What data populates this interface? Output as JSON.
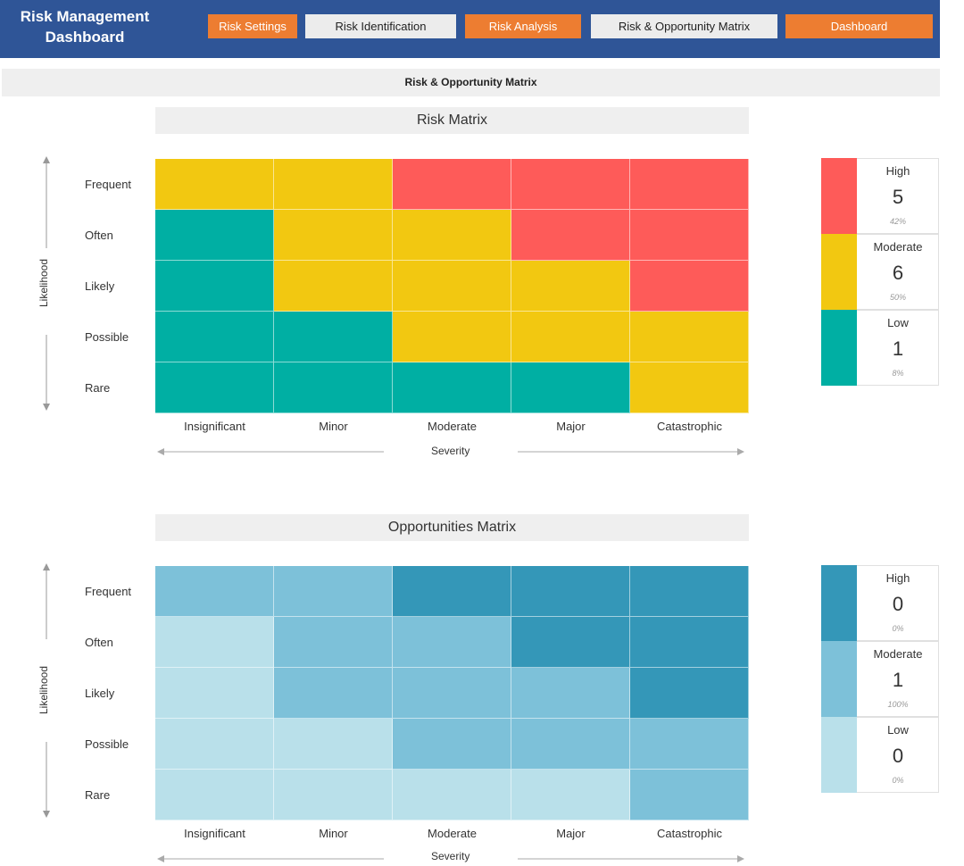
{
  "header": {
    "title_line1": "Risk Management",
    "title_line2": "Dashboard",
    "nav": [
      {
        "label": "Risk Settings",
        "style": "orange"
      },
      {
        "label": "Risk Identification",
        "style": "light"
      },
      {
        "label": "Risk Analysis",
        "style": "orange"
      },
      {
        "label": "Risk & Opportunity  Matrix",
        "style": "light"
      },
      {
        "label": "Dashboard",
        "style": "orange"
      }
    ]
  },
  "section_title": "Risk & Opportunity Matrix",
  "colors": {
    "risk": {
      "high": "#fe5b59",
      "moderate": "#f2c811",
      "low": "#00afa3"
    },
    "opp": {
      "high": "#3497b8",
      "moderate": "#7dc1d9",
      "low": "#b9e0ea"
    }
  },
  "chart_data": [
    {
      "type": "heatmap",
      "title": "Risk Matrix",
      "ylabel": "Likelihood",
      "xlabel": "Severity",
      "rows": [
        "Frequent",
        "Often",
        "Likely",
        "Possible",
        "Rare"
      ],
      "columns": [
        "Insignificant",
        "Minor",
        "Moderate",
        "Major",
        "Catastrophic"
      ],
      "cells": [
        [
          "moderate",
          "moderate",
          "high",
          "high",
          "high"
        ],
        [
          "low",
          "moderate",
          "moderate",
          "high",
          "high"
        ],
        [
          "low",
          "moderate",
          "moderate",
          "moderate",
          "high"
        ],
        [
          "low",
          "low",
          "moderate",
          "moderate",
          "moderate"
        ],
        [
          "low",
          "low",
          "low",
          "low",
          "moderate"
        ]
      ],
      "legend": [
        {
          "level": "high",
          "label": "High",
          "count": 5,
          "percent": "42%"
        },
        {
          "level": "moderate",
          "label": "Moderate",
          "count": 6,
          "percent": "50%"
        },
        {
          "level": "low",
          "label": "Low",
          "count": 1,
          "percent": "8%"
        }
      ]
    },
    {
      "type": "heatmap",
      "title": "Opportunities Matrix",
      "ylabel": "Likelihood",
      "xlabel": "Severity",
      "rows": [
        "Frequent",
        "Often",
        "Likely",
        "Possible",
        "Rare"
      ],
      "columns": [
        "Insignificant",
        "Minor",
        "Moderate",
        "Major",
        "Catastrophic"
      ],
      "cells": [
        [
          "moderate",
          "moderate",
          "high",
          "high",
          "high"
        ],
        [
          "low",
          "moderate",
          "moderate",
          "high",
          "high"
        ],
        [
          "low",
          "moderate",
          "moderate",
          "moderate",
          "high"
        ],
        [
          "low",
          "low",
          "moderate",
          "moderate",
          "moderate"
        ],
        [
          "low",
          "low",
          "low",
          "low",
          "moderate"
        ]
      ],
      "legend": [
        {
          "level": "high",
          "label": "High",
          "count": 0,
          "percent": "0%"
        },
        {
          "level": "moderate",
          "label": "Moderate",
          "count": 1,
          "percent": "100%"
        },
        {
          "level": "low",
          "label": "Low",
          "count": 0,
          "percent": "0%"
        }
      ]
    }
  ]
}
